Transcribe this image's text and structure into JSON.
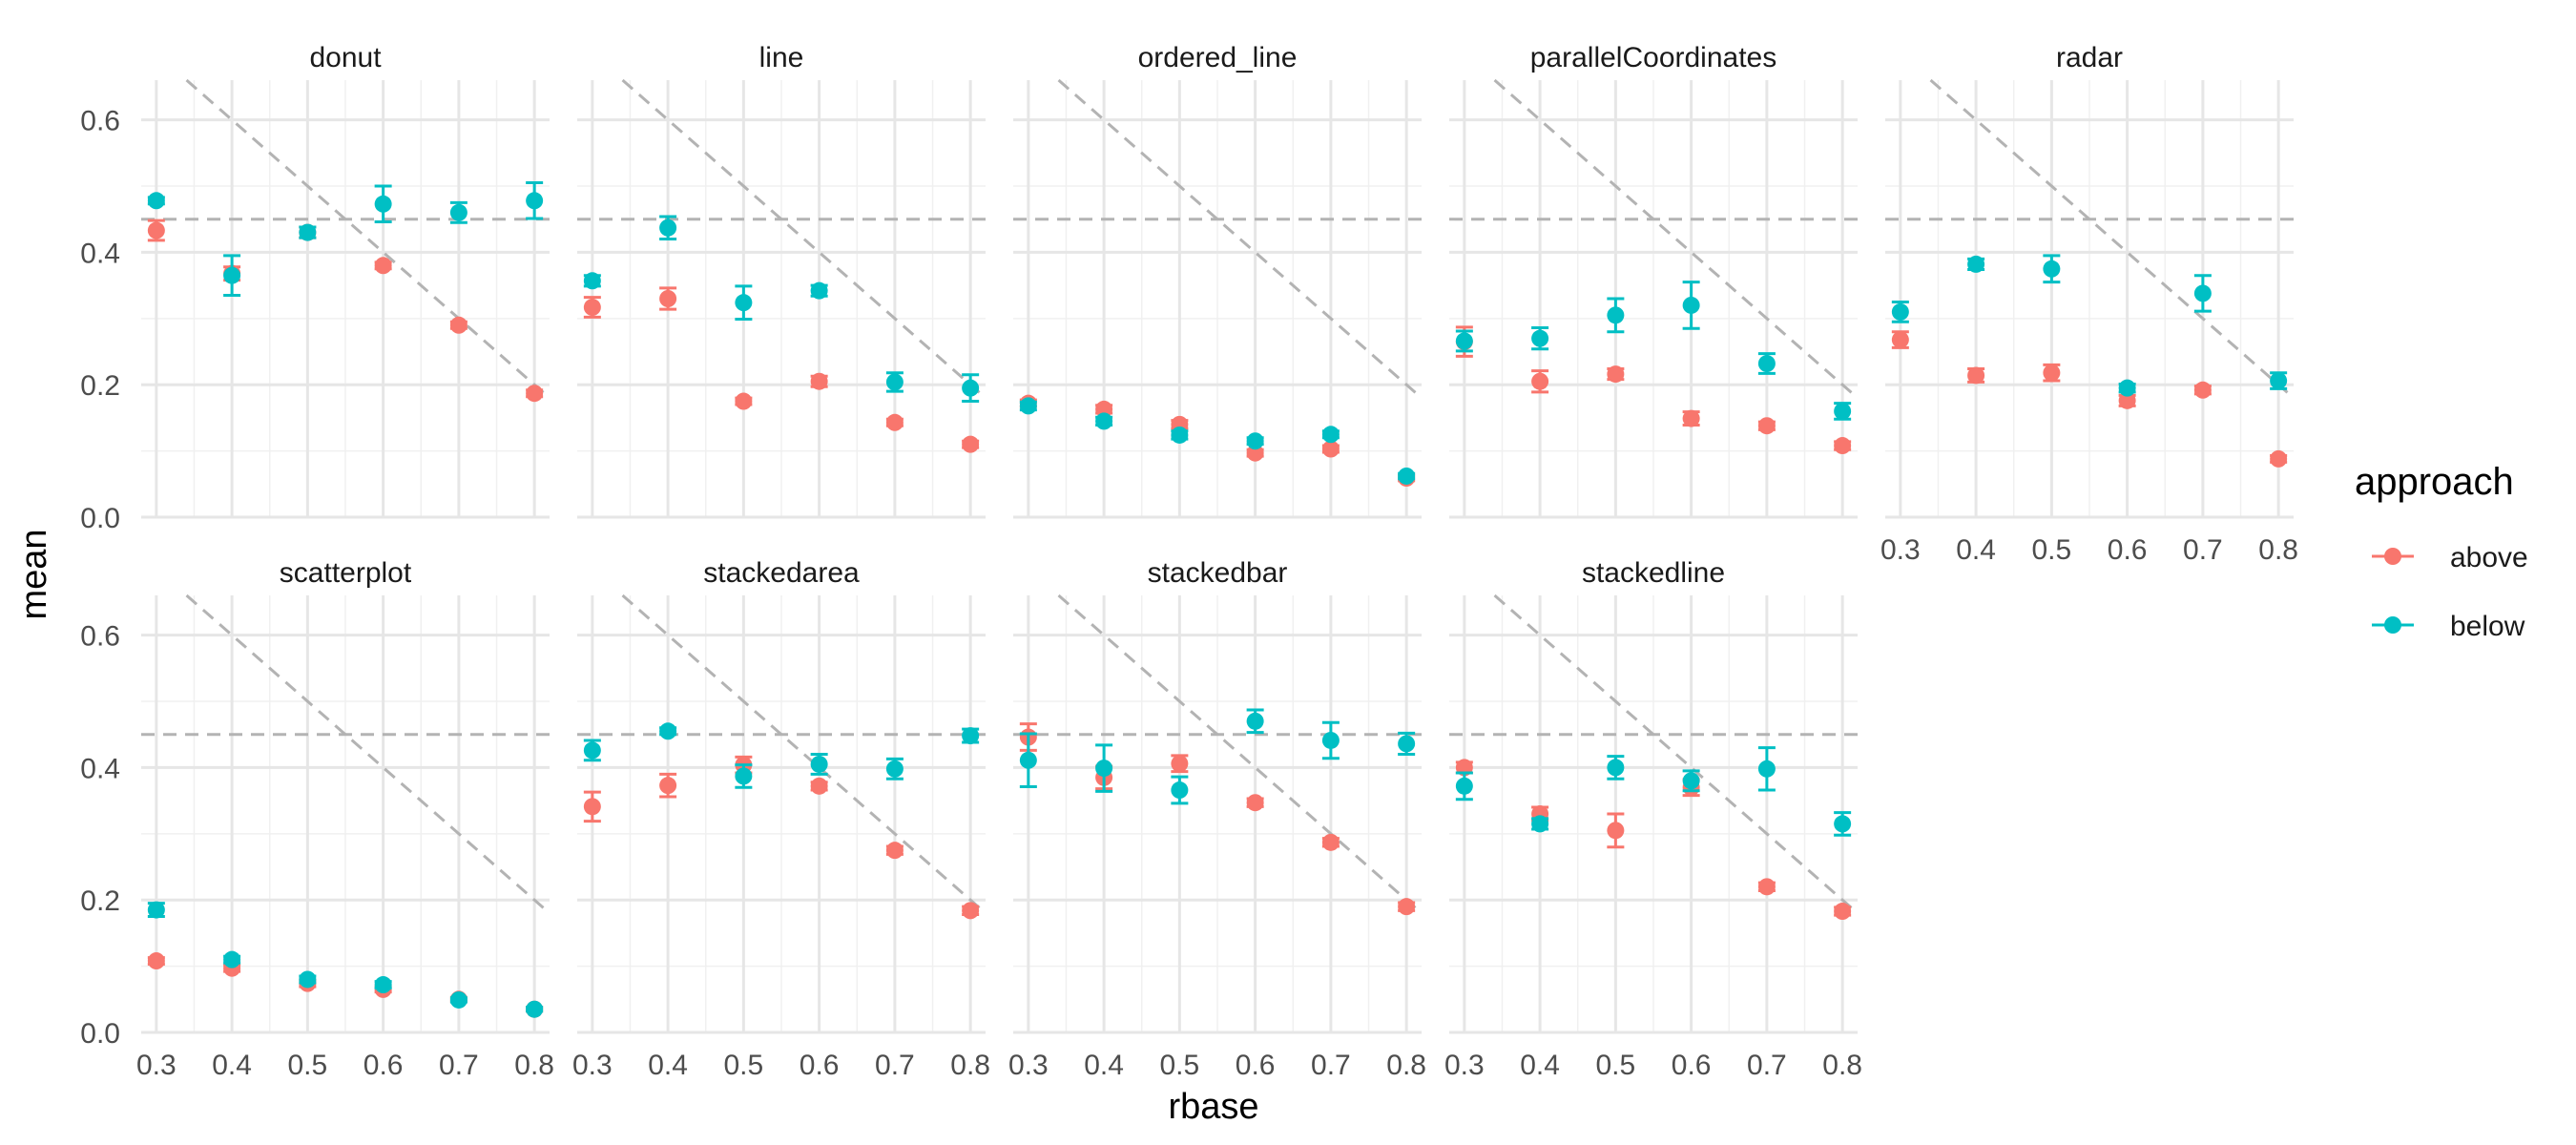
{
  "chart_data": {
    "type": "scatter",
    "xlabel": "rbase",
    "ylabel": "mean",
    "x": [
      0.3,
      0.4,
      0.5,
      0.6,
      0.7,
      0.8
    ],
    "x_ticks": [
      "0.3",
      "0.4",
      "0.5",
      "0.6",
      "0.7",
      "0.8"
    ],
    "y_ticks": [
      "0.0",
      "0.2",
      "0.4",
      "0.6"
    ],
    "ylim": [
      0,
      0.66
    ],
    "xlim": [
      0.28,
      0.82
    ],
    "grid": true,
    "reference_lines": {
      "horizontal": 0.45,
      "diagonal": "y = 0.45 - (x - 0.55)"
    },
    "legend": {
      "title": "approach",
      "position": "right",
      "entries": [
        {
          "label": "above",
          "color": "#F8766D"
        },
        {
          "label": "below",
          "color": "#00BFC4"
        }
      ]
    },
    "panels": [
      {
        "title": "donut",
        "series": [
          {
            "name": "above",
            "color": "#F8766D",
            "values": [
              0.433,
              0.368,
              0.43,
              0.38,
              0.29,
              0.187
            ],
            "error": [
              0.015,
              0.01,
              0.008,
              0.005,
              0.005,
              0.005
            ]
          },
          {
            "name": "below",
            "color": "#00BFC4",
            "values": [
              0.478,
              0.365,
              0.43,
              0.473,
              0.46,
              0.478
            ],
            "error": [
              0.005,
              0.03,
              0.008,
              0.027,
              0.015,
              0.027
            ]
          }
        ]
      },
      {
        "title": "line",
        "series": [
          {
            "name": "above",
            "color": "#F8766D",
            "values": [
              0.317,
              0.33,
              0.175,
              0.205,
              0.143,
              0.11
            ],
            "error": [
              0.015,
              0.016,
              0.005,
              0.008,
              0.005,
              0.005
            ]
          },
          {
            "name": "below",
            "color": "#00BFC4",
            "values": [
              0.357,
              0.437,
              0.324,
              0.342,
              0.204,
              0.195
            ],
            "error": [
              0.008,
              0.017,
              0.025,
              0.008,
              0.014,
              0.02
            ]
          }
        ]
      },
      {
        "title": "ordered_line",
        "series": [
          {
            "name": "above",
            "color": "#F8766D",
            "values": [
              0.172,
              0.163,
              0.14,
              0.097,
              0.103,
              0.059
            ],
            "error": [
              0.005,
              0.006,
              0.006,
              0.005,
              0.005,
              0.004
            ]
          },
          {
            "name": "below",
            "color": "#00BFC4",
            "values": [
              0.168,
              0.145,
              0.124,
              0.115,
              0.125,
              0.062
            ],
            "error": [
              0.006,
              0.006,
              0.006,
              0.005,
              0.005,
              0.004
            ]
          }
        ]
      },
      {
        "title": "parallelCoordinates",
        "series": [
          {
            "name": "above",
            "color": "#F8766D",
            "values": [
              0.265,
              0.205,
              0.216,
              0.149,
              0.138,
              0.108
            ],
            "error": [
              0.022,
              0.016,
              0.008,
              0.01,
              0.006,
              0.006
            ]
          },
          {
            "name": "below",
            "color": "#00BFC4",
            "values": [
              0.266,
              0.27,
              0.305,
              0.32,
              0.232,
              0.16
            ],
            "error": [
              0.015,
              0.016,
              0.025,
              0.035,
              0.015,
              0.012
            ]
          }
        ]
      },
      {
        "title": "radar",
        "series": [
          {
            "name": "above",
            "color": "#F8766D",
            "values": [
              0.268,
              0.214,
              0.218,
              0.176,
              0.192,
              0.088
            ],
            "error": [
              0.012,
              0.01,
              0.012,
              0.008,
              0.006,
              0.005
            ]
          },
          {
            "name": "below",
            "color": "#00BFC4",
            "values": [
              0.31,
              0.382,
              0.375,
              0.195,
              0.338,
              0.206
            ],
            "error": [
              0.015,
              0.008,
              0.02,
              0.006,
              0.027,
              0.012
            ]
          }
        ]
      },
      {
        "title": "scatterplot",
        "series": [
          {
            "name": "above",
            "color": "#F8766D",
            "values": [
              0.108,
              0.097,
              0.074,
              0.065,
              0.05,
              0.035
            ],
            "error": [
              0.005,
              0.005,
              0.005,
              0.004,
              0.003,
              0.003
            ]
          },
          {
            "name": "below",
            "color": "#00BFC4",
            "values": [
              0.185,
              0.11,
              0.08,
              0.072,
              0.049,
              0.035
            ],
            "error": [
              0.01,
              0.005,
              0.005,
              0.005,
              0.003,
              0.003
            ]
          }
        ]
      },
      {
        "title": "stackedarea",
        "series": [
          {
            "name": "above",
            "color": "#F8766D",
            "values": [
              0.341,
              0.373,
              0.404,
              0.372,
              0.275,
              0.184
            ],
            "error": [
              0.022,
              0.017,
              0.012,
              0.006,
              0.006,
              0.006
            ]
          },
          {
            "name": "below",
            "color": "#00BFC4",
            "values": [
              0.426,
              0.455,
              0.387,
              0.405,
              0.398,
              0.448
            ],
            "error": [
              0.015,
              0.005,
              0.017,
              0.015,
              0.015,
              0.01
            ]
          }
        ]
      },
      {
        "title": "stackedbar",
        "series": [
          {
            "name": "above",
            "color": "#F8766D",
            "values": [
              0.446,
              0.385,
              0.406,
              0.347,
              0.287,
              0.19
            ],
            "error": [
              0.02,
              0.017,
              0.012,
              0.006,
              0.006,
              0.006
            ]
          },
          {
            "name": "below",
            "color": "#00BFC4",
            "values": [
              0.411,
              0.399,
              0.366,
              0.47,
              0.441,
              0.436
            ],
            "error": [
              0.04,
              0.035,
              0.02,
              0.017,
              0.027,
              0.016
            ]
          }
        ]
      },
      {
        "title": "stackedline",
        "series": [
          {
            "name": "above",
            "color": "#F8766D",
            "values": [
              0.4,
              0.33,
              0.305,
              0.37,
              0.22,
              0.183
            ],
            "error": [
              0.008,
              0.01,
              0.025,
              0.012,
              0.006,
              0.006
            ]
          },
          {
            "name": "below",
            "color": "#00BFC4",
            "values": [
              0.372,
              0.315,
              0.4,
              0.38,
              0.398,
              0.315
            ],
            "error": [
              0.02,
              0.008,
              0.017,
              0.015,
              0.032,
              0.017
            ]
          }
        ]
      }
    ]
  }
}
